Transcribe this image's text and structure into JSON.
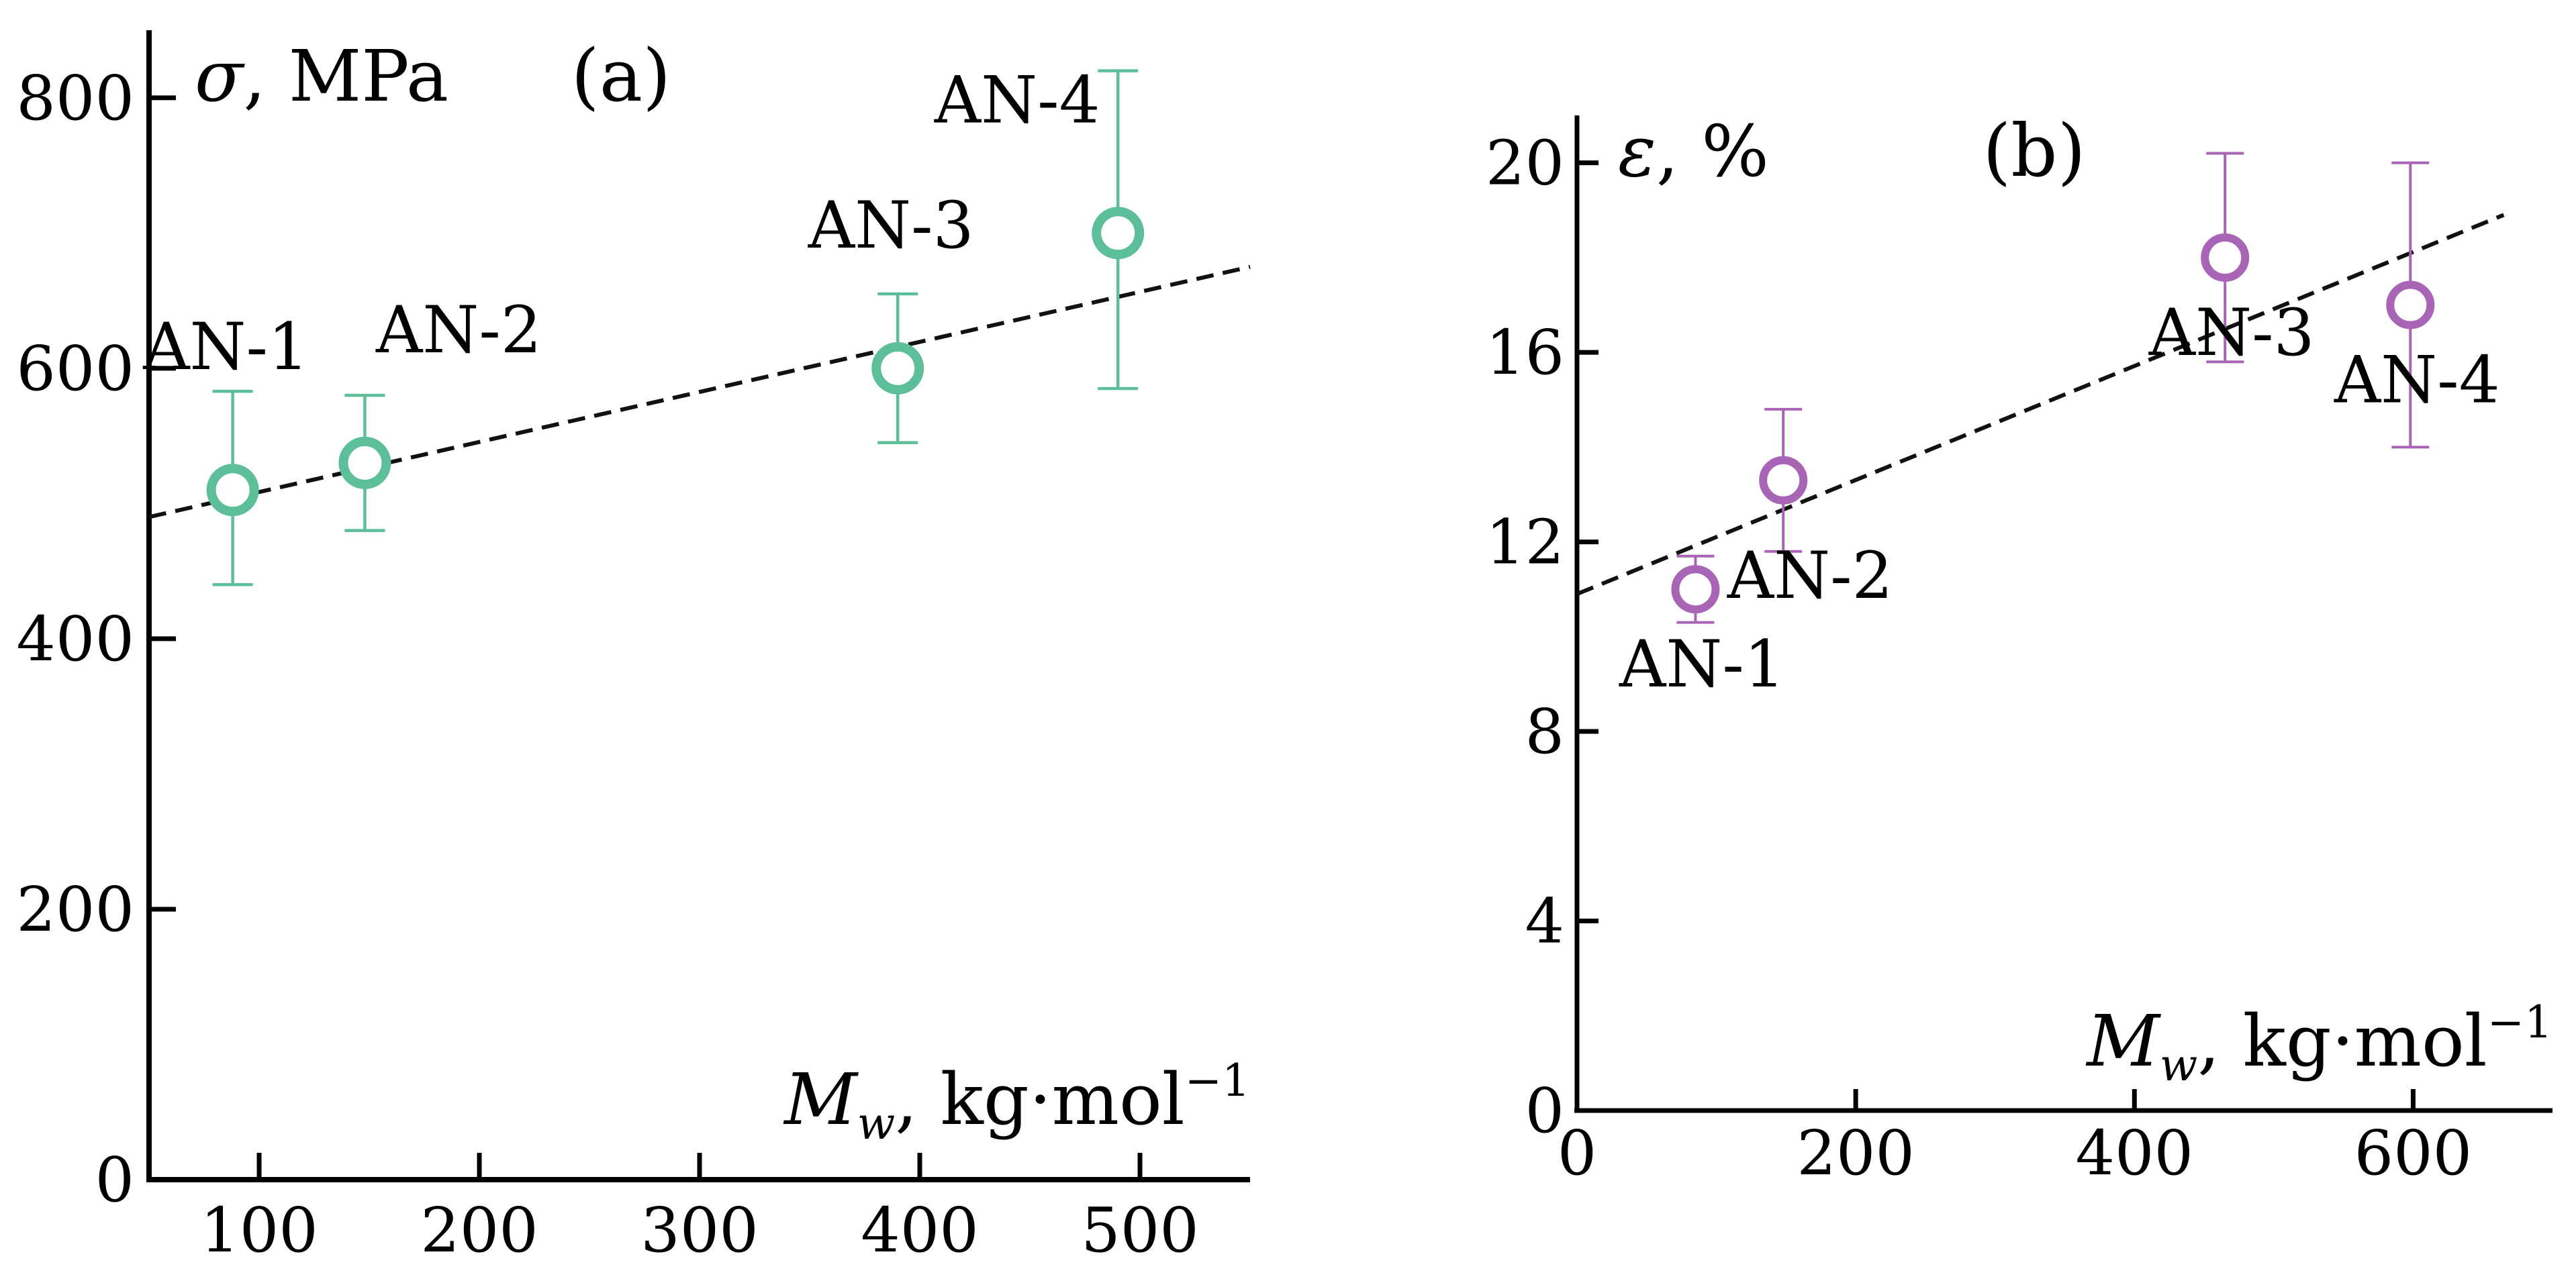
{
  "chart_data": [
    {
      "panel": "(a)",
      "type": "scatter",
      "title": "",
      "xlabel": {
        "symbol": "M",
        "subscript": "w",
        "unit": ", kg·mol",
        "exponent": "−1"
      },
      "ylabel": {
        "symbol": "σ",
        "unit": ", MPa"
      },
      "xlim": [
        50,
        550
      ],
      "ylim": [
        0,
        850
      ],
      "x_ticks": [
        100,
        200,
        300,
        400,
        500
      ],
      "y_ticks": [
        0,
        200,
        400,
        600,
        800
      ],
      "grid": false,
      "color": "#5cbf9a",
      "points": [
        {
          "label": "AN-1",
          "x": 88,
          "y": 510,
          "err_low": 440,
          "err_high": 583,
          "label_pos": "above"
        },
        {
          "label": "AN-2",
          "x": 148,
          "y": 530,
          "err_low": 480,
          "err_high": 580,
          "label_pos": "above-right"
        },
        {
          "label": "AN-3",
          "x": 390,
          "y": 600,
          "err_low": 545,
          "err_high": 655,
          "label_pos": "above"
        },
        {
          "label": "AN-4",
          "x": 490,
          "y": 700,
          "err_low": 585,
          "err_high": 820,
          "label_pos": "above-left"
        }
      ],
      "trend_line": {
        "style": "dashed",
        "x": [
          50,
          550
        ],
        "y": [
          490,
          675
        ]
      }
    },
    {
      "panel": "(b)",
      "type": "scatter",
      "title": "",
      "xlabel": {
        "symbol": "M",
        "subscript": "w",
        "unit": ", kg·mol",
        "exponent": "−1"
      },
      "ylabel": {
        "symbol": "ε",
        "unit": ", %"
      },
      "xlim": [
        0,
        700
      ],
      "ylim": [
        0,
        21
      ],
      "x_ticks": [
        0,
        200,
        400,
        600
      ],
      "y_ticks": [
        0,
        4,
        8,
        12,
        16,
        20
      ],
      "grid": false,
      "color": "#a865b5",
      "points": [
        {
          "label": "AN-1",
          "x": 85,
          "y": 11.0,
          "err_low": 10.3,
          "err_high": 11.7,
          "label_pos": "below"
        },
        {
          "label": "AN-2",
          "x": 148,
          "y": 13.3,
          "err_low": 11.8,
          "err_high": 14.8,
          "label_pos": "below-right"
        },
        {
          "label": "AN-3",
          "x": 465,
          "y": 18.0,
          "err_low": 15.8,
          "err_high": 20.2,
          "label_pos": "below"
        },
        {
          "label": "AN-4",
          "x": 598,
          "y": 17.0,
          "err_low": 14.0,
          "err_high": 20.0,
          "label_pos": "below"
        }
      ],
      "trend_line": {
        "style": "dashed",
        "x": [
          0,
          665
        ],
        "y": [
          10.9,
          18.9
        ]
      }
    }
  ]
}
